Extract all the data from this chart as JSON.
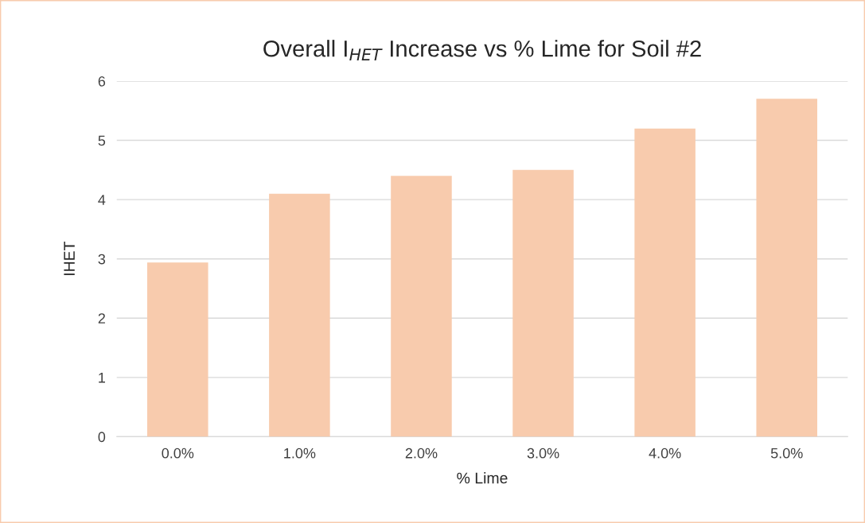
{
  "chart_data": {
    "type": "bar",
    "title": "Overall I$_{HET}$ Increase vs % Lime for Soil #2",
    "xlabel": "% Lime",
    "ylabel": "IHET",
    "categories": [
      "0.0%",
      "1.0%",
      "2.0%",
      "3.0%",
      "4.0%",
      "5.0%"
    ],
    "values": [
      2.94,
      4.1,
      4.4,
      4.5,
      5.2,
      5.7
    ],
    "color": "#f8cbad",
    "ylim": [
      0,
      6
    ],
    "yticks": [
      0,
      1,
      2,
      3,
      4,
      5,
      6
    ],
    "grid": "y"
  }
}
